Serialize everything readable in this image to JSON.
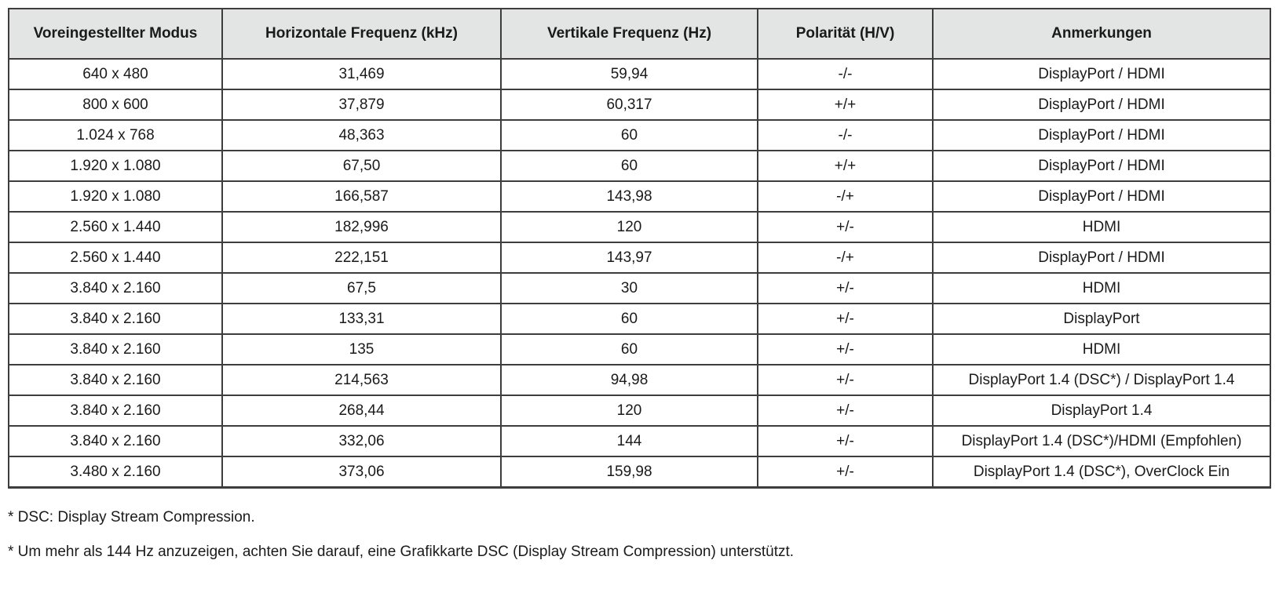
{
  "colors": {
    "header_bg": "#e3e4e4",
    "border": "#3d3d3d",
    "text": "#1a1a1a"
  },
  "table": {
    "headers": [
      "Voreingestellter Modus",
      "Horizontale Frequenz (kHz)",
      "Vertikale Frequenz (Hz)",
      "Polarität (H/V)",
      "Anmerkungen"
    ],
    "rows": [
      [
        "640 x 480",
        "31,469",
        "59,94",
        "-/-",
        "DisplayPort / HDMI"
      ],
      [
        "800 x 600",
        "37,879",
        "60,317",
        "+/+",
        "DisplayPort / HDMI"
      ],
      [
        "1.024 x 768",
        "48,363",
        "60",
        "-/-",
        "DisplayPort / HDMI"
      ],
      [
        "1.920 x 1.080",
        "67,50",
        "60",
        "+/+",
        "DisplayPort / HDMI"
      ],
      [
        "1.920 x 1.080",
        "166,587",
        "143,98",
        "-/+",
        "DisplayPort / HDMI"
      ],
      [
        "2.560 x 1.440",
        "182,996",
        "120",
        "+/-",
        "HDMI"
      ],
      [
        "2.560 x 1.440",
        "222,151",
        "143,97",
        "-/+",
        "DisplayPort / HDMI"
      ],
      [
        "3.840 x 2.160",
        "67,5",
        "30",
        "+/-",
        "HDMI"
      ],
      [
        "3.840 x 2.160",
        "133,31",
        "60",
        "+/-",
        "DisplayPort"
      ],
      [
        "3.840 x 2.160",
        "135",
        "60",
        "+/-",
        "HDMI"
      ],
      [
        "3.840 x 2.160",
        "214,563",
        "94,98",
        "+/-",
        "DisplayPort 1.4 (DSC*) / DisplayPort 1.4"
      ],
      [
        "3.840 x 2.160",
        "268,44",
        "120",
        "+/-",
        "DisplayPort 1.4"
      ],
      [
        "3.840 x 2.160",
        "332,06",
        "144",
        "+/-",
        "DisplayPort 1.4 (DSC*)/HDMI (Empfohlen)"
      ],
      [
        "3.480 x 2.160",
        "373,06",
        "159,98",
        "+/-",
        "DisplayPort 1.4 (DSC*), OverClock Ein"
      ]
    ]
  },
  "footnotes": [
    "* DSC: Display Stream Compression.",
    "* Um mehr als 144 Hz anzuzeigen, achten Sie darauf, eine Grafikkarte DSC (Display Stream Compression) unterstützt."
  ]
}
